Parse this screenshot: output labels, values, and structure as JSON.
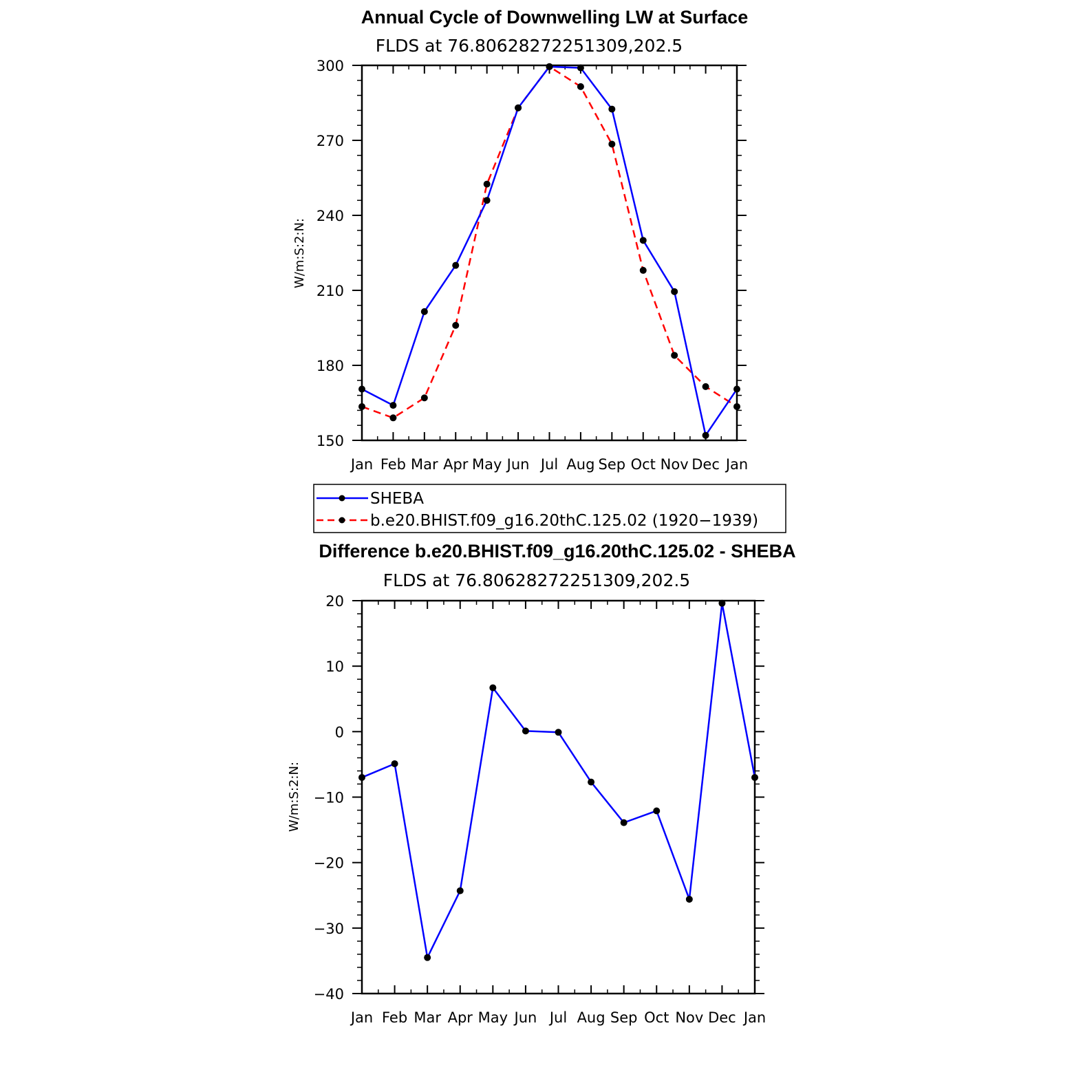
{
  "chart_data": [
    {
      "type": "line",
      "title": "Annual Cycle of Downwelling LW at Surface",
      "subtitle": "FLDS at 76.80628272251309,202.5",
      "ylabel": "W/m:S:2:N:",
      "xlabel": "",
      "categories": [
        "Jan",
        "Feb",
        "Mar",
        "Apr",
        "May",
        "Jun",
        "Jul",
        "Aug",
        "Sep",
        "Oct",
        "Nov",
        "Dec",
        "Jan"
      ],
      "ylim": [
        150,
        300
      ],
      "yticks": [
        150,
        180,
        210,
        240,
        270,
        300
      ],
      "series": [
        {
          "name": "SHEBA",
          "color": "#0000ff",
          "dash": "solid",
          "values": [
            170.5,
            164,
            201.5,
            220,
            246,
            283,
            299.5,
            299,
            282.5,
            230,
            209.5,
            152,
            170.5
          ]
        },
        {
          "name": "b.e20.BHIST.f09_g16.20thC.125.02 (1920−1939)",
          "color": "#ff0000",
          "dash": "dashed",
          "values": [
            163.5,
            159,
            167,
            196,
            252.5,
            283,
            299.5,
            291.5,
            268.5,
            218,
            184,
            171.5,
            163.5
          ]
        }
      ],
      "legend": {
        "placement": "bottom",
        "entries": [
          "SHEBA",
          "b.e20.BHIST.f09_g16.20thC.125.02 (1920−1939)"
        ]
      }
    },
    {
      "type": "line",
      "title": "Difference b.e20.BHIST.f09_g16.20thC.125.02 - SHEBA",
      "subtitle": "FLDS at 76.80628272251309,202.5",
      "ylabel": "W/m:S:2:N:",
      "xlabel": "",
      "categories": [
        "Jan",
        "Feb",
        "Mar",
        "Apr",
        "May",
        "Jun",
        "Jul",
        "Aug",
        "Sep",
        "Oct",
        "Nov",
        "Dec",
        "Jan"
      ],
      "ylim": [
        -40,
        20
      ],
      "yticks": [
        -40,
        -30,
        -20,
        -10,
        0,
        10,
        20
      ],
      "ytick_labels": [
        "−40",
        "−30",
        "−20",
        "−10",
        "0",
        "10",
        "20"
      ],
      "series": [
        {
          "name": "",
          "color": "#0000ff",
          "dash": "solid",
          "values": [
            -7,
            -4.9,
            -34.5,
            -24.3,
            6.7,
            0.1,
            -0.1,
            -7.7,
            -13.9,
            -12.1,
            -25.6,
            19.6,
            -7
          ]
        }
      ]
    }
  ]
}
